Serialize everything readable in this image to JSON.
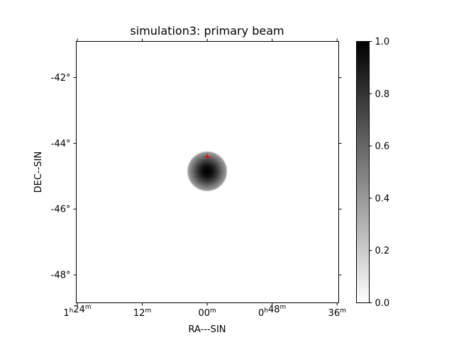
{
  "chart_data": {
    "type": "heatmap",
    "title": "simulation3: primary beam",
    "xlabel": "RA---SIN",
    "ylabel": "DEC--SIN",
    "colormap": "gray_r",
    "colorbar": {
      "range": [
        0.0,
        1.0
      ],
      "ticks": [
        "0.0",
        "0.2",
        "0.4",
        "0.6",
        "0.8",
        "1.0"
      ],
      "tick_values": [
        0.0,
        0.2,
        0.4,
        0.6,
        0.8,
        1.0
      ]
    },
    "x_axis": {
      "tick_values_min": [
        84,
        72,
        60,
        48,
        36
      ],
      "tick_labels": [
        {
          "h": "1",
          "hsup": "h",
          "m": "24",
          "msup": "m"
        },
        {
          "h": "",
          "hsup": "",
          "m": "12",
          "msup": "m"
        },
        {
          "h": "",
          "hsup": "",
          "m": "00",
          "msup": "m"
        },
        {
          "h": "0",
          "hsup": "h",
          "m": "48",
          "msup": "m"
        },
        {
          "h": "",
          "hsup": "",
          "m": "36",
          "msup": "m"
        }
      ],
      "range_min": [
        84.2,
        35.7
      ]
    },
    "y_axis": {
      "tick_values": [
        -42,
        -44,
        -46,
        -48
      ],
      "tick_labels": [
        "-42°",
        "-44°",
        "-46°",
        "-48°"
      ],
      "range": [
        -48.85,
        -40.9
      ]
    },
    "beam": {
      "center_ra_min": 60.0,
      "center_dec": -44.85,
      "peak": 1.0,
      "sigma_deg": 0.42,
      "cutoff_deg": 0.62
    },
    "marker": {
      "ra_min": 60.0,
      "dec": -44.4,
      "symbol": "+",
      "color": "#ff0000"
    }
  }
}
